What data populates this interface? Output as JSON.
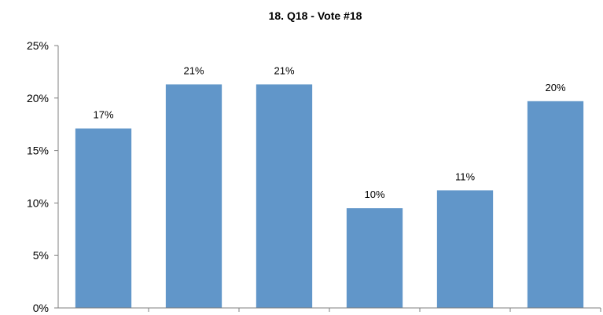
{
  "chart_data": {
    "type": "bar",
    "title": "18. Q18 - Vote #18",
    "xlabel": "",
    "ylabel": "",
    "categories": [
      "",
      "",
      "",
      "",
      "",
      ""
    ],
    "values": [
      17.1,
      21.3,
      21.3,
      9.5,
      11.2,
      19.7
    ],
    "data_labels": [
      "17%",
      "21%",
      "21%",
      "10%",
      "11%",
      "20%"
    ],
    "ylim": [
      0,
      25
    ],
    "yticks": [
      0,
      5,
      10,
      15,
      20,
      25
    ],
    "ytick_labels": [
      "0%",
      "5%",
      "10%",
      "15%",
      "20%",
      "25%"
    ],
    "grid": false,
    "legend": "none",
    "colors": {
      "bar": "#6196c9",
      "axis": "#7f7f7f"
    }
  }
}
